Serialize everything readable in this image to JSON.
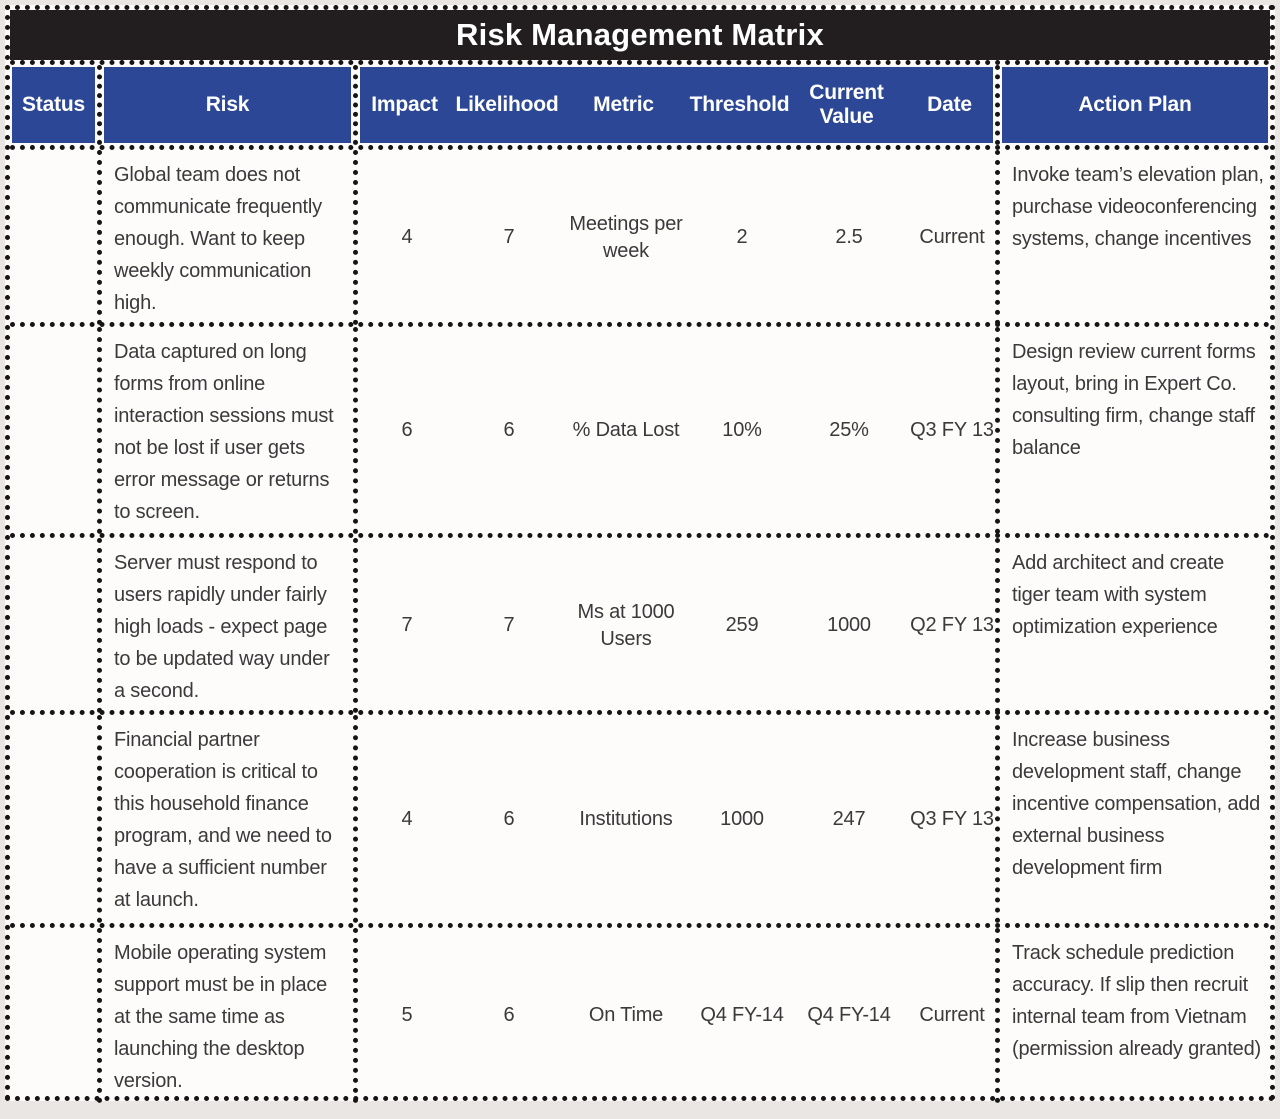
{
  "title": "Risk Management Matrix",
  "colors": {
    "title_bg": "#221e1f",
    "header_bg": "#2c4795",
    "header_text": "#ffffff",
    "body_text": "#3b393a",
    "border": "#161414",
    "table_bg": "#fdfcfb",
    "page_bg": "#e9e6e4"
  },
  "header": {
    "status": "Status",
    "risk": "Risk",
    "impact": "Impact",
    "likelihood": "Likelihood",
    "metric": "Metric",
    "threshold": "Threshold",
    "current_value": "Current Value",
    "date": "Date",
    "action_plan": "Action Plan"
  },
  "rows": [
    {
      "status": "",
      "risk": "Global team does not communicate frequently enough. Want to keep weekly communication high.",
      "impact": "4",
      "likelihood": "7",
      "metric": "Meetings per week",
      "threshold": "2",
      "current_value": "2.5",
      "date": "Current",
      "action_plan": "Invoke team’s elevation plan, purchase videoconferencing systems, change incentives"
    },
    {
      "status": "",
      "risk": "Data captured on long forms from online interaction sessions must not be lost if user gets error message or returns to screen.",
      "impact": "6",
      "likelihood": "6",
      "metric": "% Data Lost",
      "threshold": "10%",
      "current_value": "25%",
      "date": "Q3 FY 13",
      "action_plan": "Design review current forms layout, bring in Expert Co. consulting firm, change staff balance"
    },
    {
      "status": "",
      "risk": "Server must respond to users rapidly under fairly high loads - expect page to be updated way under a second.",
      "impact": "7",
      "likelihood": "7",
      "metric": "Ms at 1000 Users",
      "threshold": "259",
      "current_value": "1000",
      "date": "Q2 FY 13",
      "action_plan": "Add architect and create tiger team with system optimization experience"
    },
    {
      "status": "",
      "risk": "Financial partner cooperation is critical to this household finance program, and we need to have a sufficient number at launch.",
      "impact": "4",
      "likelihood": "6",
      "metric": "Institutions",
      "threshold": "1000",
      "current_value": "247",
      "date": "Q3 FY 13",
      "action_plan": "Increase business development staff, change incentive compensation, add external business development firm"
    },
    {
      "status": "",
      "risk": "Mobile operating system support must be in place at the same time as launching the desktop version.",
      "impact": "5",
      "likelihood": "6",
      "metric": "On Time",
      "threshold": "Q4 FY-14",
      "current_value": "Q4 FY-14",
      "date": "Current",
      "action_plan": "Track schedule prediction accuracy. If slip then recruit internal team from Vietnam (permission already granted)"
    }
  ]
}
